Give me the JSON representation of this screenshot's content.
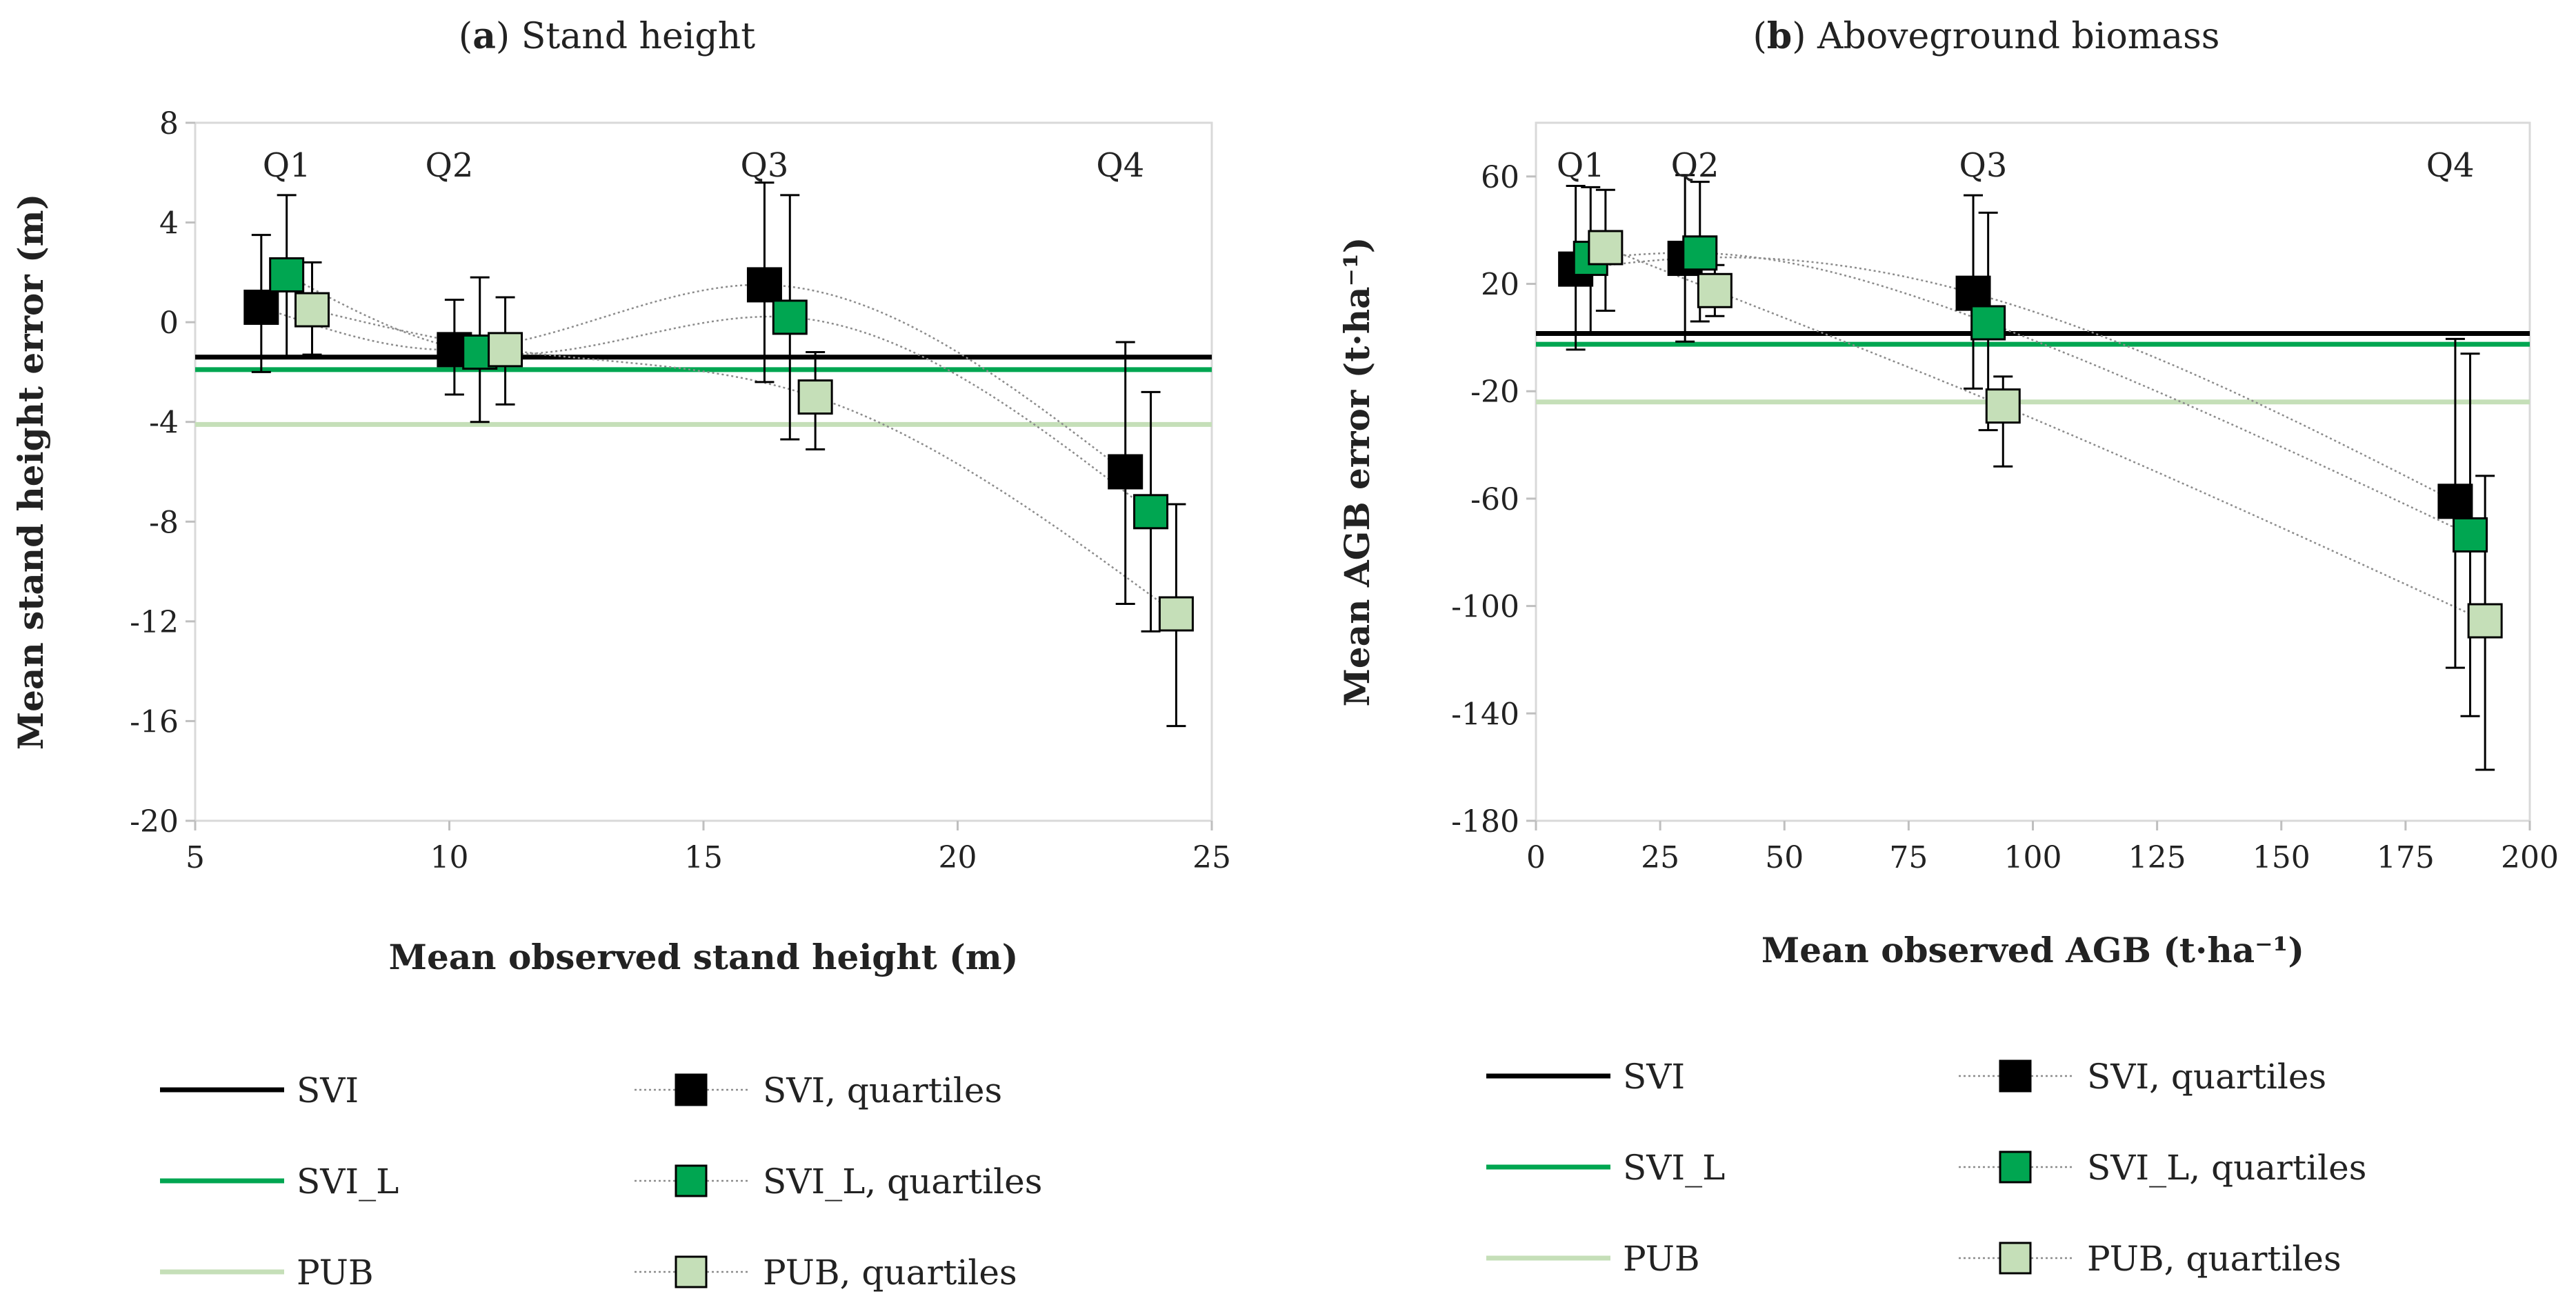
{
  "chart_data": [
    {
      "id": "a",
      "type": "scatter",
      "title_prefix": "(",
      "title_letter": "a",
      "title_rest": ") Stand height",
      "xlabel": "Mean observed stand height (m)",
      "ylabel": "Mean stand height  error (m)",
      "xlim": [
        5,
        25
      ],
      "ylim": [
        -20,
        8
      ],
      "xticks": [
        5,
        10,
        15,
        20,
        25
      ],
      "yticks": [
        -20,
        -16,
        -12,
        -8,
        -4,
        0,
        4,
        8
      ],
      "xtick_labels": [
        "5",
        "10",
        "15",
        "20",
        "25"
      ],
      "ytick_labels": [
        "-20",
        "-16",
        "-12",
        "-8",
        "-4",
        "0",
        "4",
        "8"
      ],
      "grid": false,
      "quartile_labels": [
        {
          "text": "Q1",
          "x": 6.8
        },
        {
          "text": "Q2",
          "x": 10.0
        },
        {
          "text": "Q3",
          "x": 16.2
        },
        {
          "text": "Q4",
          "x": 23.2
        }
      ],
      "reference_lines": [
        {
          "name": "SVI",
          "value": -1.4,
          "color": "#000000"
        },
        {
          "name": "SVI_L",
          "value": -1.9,
          "color": "#00a651"
        },
        {
          "name": "PUB",
          "value": -4.1,
          "color": "#c5dfb8"
        }
      ],
      "series": [
        {
          "name": "SVI, quartiles",
          "fill": "#000000",
          "stroke": "#000000",
          "x": [
            6.3,
            10.1,
            16.2,
            23.3
          ],
          "y": [
            0.6,
            -1.1,
            1.5,
            -6.0
          ],
          "err_lo": [
            -2.0,
            -2.9,
            -2.4,
            -11.3
          ],
          "err_hi": [
            3.5,
            0.9,
            5.6,
            -0.8
          ]
        },
        {
          "name": "SVI_L, quartiles",
          "fill": "#00a651",
          "stroke": "#000000",
          "x": [
            6.8,
            10.6,
            16.7,
            23.8
          ],
          "y": [
            1.9,
            -1.2,
            0.2,
            -7.6
          ],
          "err_lo": [
            -1.4,
            -4.0,
            -4.7,
            -12.4
          ],
          "err_hi": [
            5.1,
            1.8,
            5.1,
            -2.8
          ]
        },
        {
          "name": "PUB, quartiles",
          "fill": "#c5dfb8",
          "stroke": "#000000",
          "x": [
            7.3,
            11.1,
            17.2,
            24.3
          ],
          "y": [
            0.5,
            -1.1,
            -3.0,
            -11.7
          ],
          "err_lo": [
            -1.3,
            -3.3,
            -5.1,
            -16.2
          ],
          "err_hi": [
            2.4,
            1.0,
            -1.2,
            -7.3
          ]
        }
      ]
    },
    {
      "id": "b",
      "type": "scatter",
      "title_prefix": "(",
      "title_letter": "b",
      "title_rest": ") Aboveground biomass",
      "xlabel": "Mean observed AGB (t·ha⁻¹)",
      "ylabel": "Mean AGB error (t·ha⁻¹)",
      "xlim": [
        0,
        200
      ],
      "ylim": [
        -180,
        80
      ],
      "xticks": [
        0,
        25,
        50,
        75,
        100,
        125,
        150,
        175,
        200
      ],
      "yticks": [
        -180,
        -140,
        -100,
        -60,
        -20,
        20,
        60
      ],
      "xtick_labels": [
        "0",
        "25",
        "50",
        "75",
        "100",
        "125",
        "150",
        "175",
        "200"
      ],
      "ytick_labels": [
        "-180",
        "-140",
        "-100",
        "-60",
        "-20",
        "20",
        "60"
      ],
      "grid": false,
      "quartile_labels": [
        {
          "text": "Q1",
          "x": 9
        },
        {
          "text": "Q2",
          "x": 32
        },
        {
          "text": "Q3",
          "x": 90
        },
        {
          "text": "Q4",
          "x": 184
        }
      ],
      "reference_lines": [
        {
          "name": "SVI",
          "value": 1.5,
          "color": "#000000"
        },
        {
          "name": "SVI_L",
          "value": -2.5,
          "color": "#00a651"
        },
        {
          "name": "PUB",
          "value": -24.0,
          "color": "#c5dfb8"
        }
      ],
      "series": [
        {
          "name": "SVI, quartiles",
          "fill": "#000000",
          "stroke": "#000000",
          "x": [
            8,
            30,
            88,
            185
          ],
          "y": [
            25.5,
            29.5,
            16.5,
            -61.0
          ],
          "err_lo": [
            -4.5,
            -1.5,
            -19.0,
            -123.0
          ],
          "err_hi": [
            56.5,
            60.5,
            53.0,
            -0.5
          ]
        },
        {
          "name": "SVI_L, quartiles",
          "fill": "#00a651",
          "stroke": "#000000",
          "x": [
            11,
            33,
            91,
            188
          ],
          "y": [
            29.5,
            31.5,
            5.5,
            -73.5
          ],
          "err_lo": [
            2.0,
            6.0,
            -34.5,
            -141.0
          ],
          "err_hi": [
            56.0,
            58.0,
            46.5,
            -6.0
          ]
        },
        {
          "name": "PUB, quartiles",
          "fill": "#c5dfb8",
          "stroke": "#000000",
          "x": [
            14,
            36,
            94,
            191
          ],
          "y": [
            33.5,
            17.5,
            -25.5,
            -105.5
          ],
          "err_lo": [
            10.0,
            8.0,
            -48.0,
            -161.0
          ],
          "err_hi": [
            55.0,
            27.0,
            -14.5,
            -51.5
          ]
        }
      ]
    }
  ]
}
